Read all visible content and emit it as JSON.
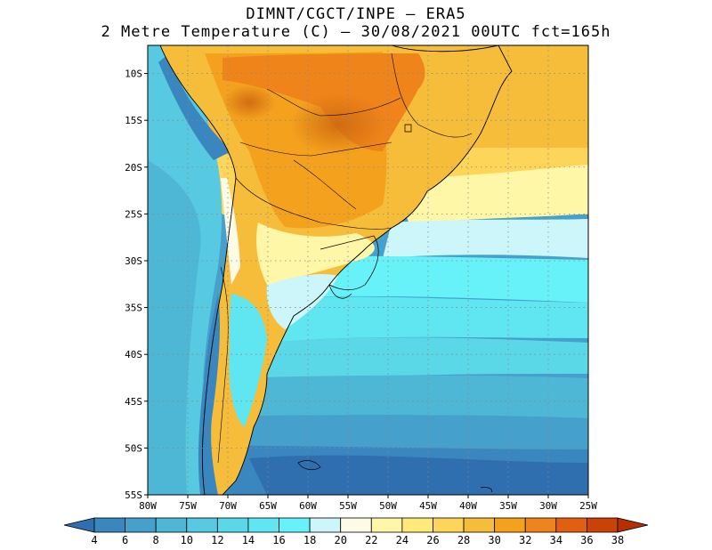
{
  "title": {
    "line1": "DIMNT/CGCT/INPE –  ERA5",
    "line2": "2 Metre Temperature (C) –  30/08/2021 00UTC fct=165h"
  },
  "map": {
    "lat_labels": [
      "10S",
      "15S",
      "20S",
      "25S",
      "30S",
      "35S",
      "40S",
      "45S",
      "50S",
      "55S"
    ],
    "lon_labels": [
      "80W",
      "75W",
      "70W",
      "65W",
      "60W",
      "55W",
      "50W",
      "45W",
      "40W",
      "35W",
      "30W",
      "25W"
    ],
    "lat_range": [
      -55,
      -7
    ],
    "lon_range": [
      -80,
      -25
    ]
  },
  "colorbar": {
    "labels": [
      "4",
      "6",
      "8",
      "10",
      "12",
      "14",
      "16",
      "18",
      "20",
      "22",
      "24",
      "26",
      "28",
      "30",
      "32",
      "34",
      "36",
      "38"
    ],
    "colors": [
      "#2f6fb0",
      "#3a87c0",
      "#45a0cc",
      "#4fb7d6",
      "#57c9e0",
      "#5bd8e8",
      "#5fe6f0",
      "#66f2f8",
      "#cdf6fb",
      "#fdfae6",
      "#fff7a8",
      "#ffe97a",
      "#fdd558",
      "#f6bd3a",
      "#f4a21e",
      "#ef841a",
      "#e25f12",
      "#c94206",
      "#b52f00"
    ]
  }
}
